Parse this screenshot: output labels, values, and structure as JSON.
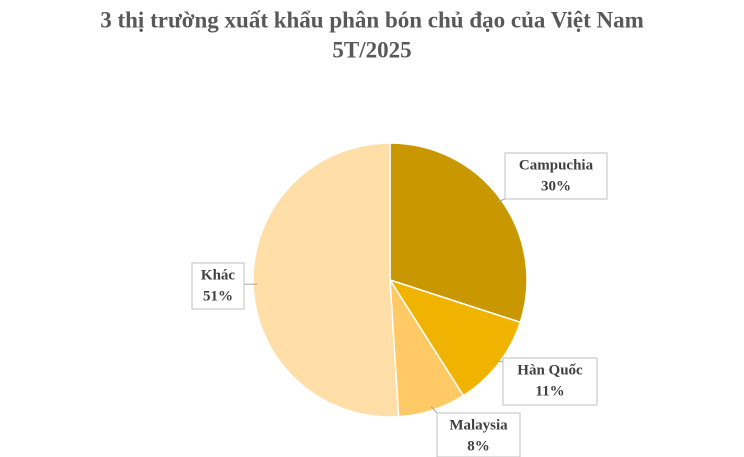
{
  "chart_data": {
    "type": "pie",
    "title": [
      "3 thị trường xuất khẩu phân bón chủ đạo của Việt Nam",
      "5T/2025"
    ],
    "categories": [
      "Campuchia",
      "Hàn Quốc",
      "Malaysia",
      "Khác"
    ],
    "values": [
      30,
      11,
      8,
      51
    ],
    "value_labels": [
      "30%",
      "11%",
      "8%",
      "51%"
    ],
    "colors": [
      "#c99700",
      "#f0b400",
      "#ffc966",
      "#ffdea8"
    ]
  }
}
